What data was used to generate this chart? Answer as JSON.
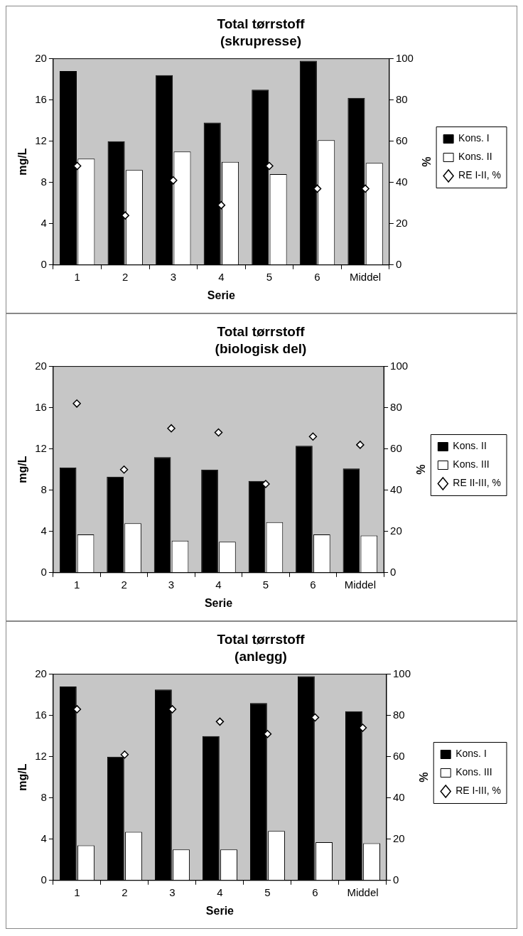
{
  "chart_data": [
    {
      "type": "bar",
      "title": "Total tørrstoff",
      "subtitle": "(skrupresse)",
      "xlabel": "Serie",
      "ylabel": "mg/L",
      "y2label": "%",
      "categories": [
        "1",
        "2",
        "3",
        "4",
        "5",
        "6",
        "Middel"
      ],
      "series": [
        {
          "name": "Kons. I",
          "color": "#000000",
          "values": [
            18.8,
            12,
            18.4,
            13.8,
            17,
            19.8,
            16.2
          ]
        },
        {
          "name": "Kons. II",
          "color": "#ffffff",
          "values": [
            10.3,
            9.2,
            11,
            10,
            8.8,
            12.1,
            9.9
          ]
        },
        {
          "name": "RE I-II, %",
          "color": "#ffffff",
          "type": "scatter",
          "axis": "y2",
          "values": [
            48,
            24,
            41,
            29,
            48,
            37,
            37
          ]
        }
      ],
      "ylim": [
        0,
        20
      ],
      "yticks": [
        0,
        4,
        8,
        12,
        16,
        20
      ],
      "y2lim": [
        0,
        100
      ],
      "y2ticks": [
        0,
        20,
        40,
        60,
        80,
        100
      ],
      "grid": false,
      "legend": "right",
      "marker": "diamond"
    },
    {
      "type": "bar",
      "title": "Total tørrstoff",
      "subtitle": "(biologisk del)",
      "xlabel": "Serie",
      "ylabel": "mg/L",
      "y2label": "%",
      "categories": [
        "1",
        "2",
        "3",
        "4",
        "5",
        "6",
        "Middel"
      ],
      "series": [
        {
          "name": "Kons. II",
          "color": "#000000",
          "values": [
            10.2,
            9.3,
            11.2,
            10,
            8.9,
            12.3,
            10.1
          ]
        },
        {
          "name": "Kons. III",
          "color": "#ffffff",
          "values": [
            3.7,
            4.8,
            3.1,
            3,
            4.9,
            3.7,
            3.6
          ]
        },
        {
          "name": "RE II-III, %",
          "color": "#ffffff",
          "type": "scatter",
          "axis": "y2",
          "values": [
            82,
            50,
            70,
            68,
            43,
            66,
            62
          ]
        }
      ],
      "ylim": [
        0,
        20
      ],
      "yticks": [
        0,
        4,
        8,
        12,
        16,
        20
      ],
      "y2lim": [
        0,
        100
      ],
      "y2ticks": [
        0,
        20,
        40,
        60,
        80,
        100
      ],
      "grid": false,
      "legend": "right",
      "marker": "diamond"
    },
    {
      "type": "bar",
      "title": "Total tørrstoff",
      "subtitle": "(anlegg)",
      "xlabel": "Serie",
      "ylabel": "mg/L",
      "y2label": "%",
      "categories": [
        "1",
        "2",
        "3",
        "4",
        "5",
        "6",
        "Middel"
      ],
      "series": [
        {
          "name": "Kons. I",
          "color": "#000000",
          "values": [
            18.8,
            12,
            18.5,
            14,
            17.2,
            19.8,
            16.4
          ]
        },
        {
          "name": "Kons. III",
          "color": "#ffffff",
          "values": [
            3.4,
            4.7,
            3,
            3,
            4.8,
            3.7,
            3.6
          ]
        },
        {
          "name": "RE I-III, %",
          "color": "#ffffff",
          "type": "scatter",
          "axis": "y2",
          "values": [
            83,
            61,
            83,
            77,
            71,
            79,
            74
          ]
        }
      ],
      "ylim": [
        0,
        20
      ],
      "yticks": [
        0,
        4,
        8,
        12,
        16,
        20
      ],
      "y2lim": [
        0,
        100
      ],
      "y2ticks": [
        0,
        20,
        40,
        60,
        80,
        100
      ],
      "grid": false,
      "legend": "right",
      "marker": "diamond"
    }
  ]
}
